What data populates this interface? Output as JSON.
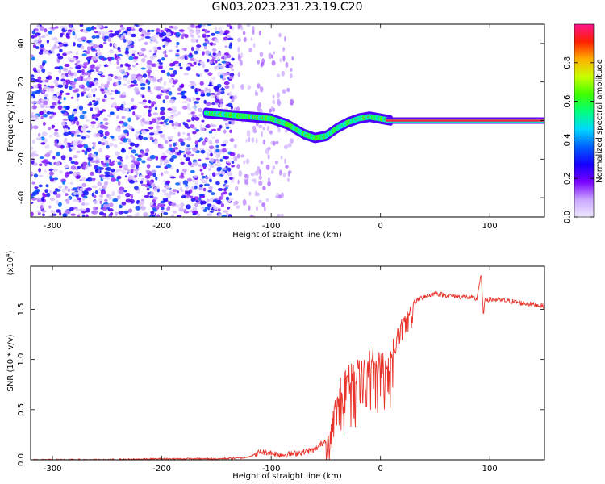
{
  "figure": {
    "title": "GN03.2023.231.23.19.C20"
  },
  "chart_data": [
    {
      "type": "heatmap",
      "xlabel": "Height of straight line (km)",
      "ylabel": "Frequency (Hz)",
      "xlim": [
        -320,
        150
      ],
      "ylim": [
        -50,
        50
      ],
      "xticks": [
        -300,
        -200,
        -100,
        0,
        100
      ],
      "yticks": [
        -40,
        -20,
        0,
        20,
        40
      ],
      "colorbar": {
        "label": "Normalized spectral amplitude",
        "range": [
          0.0,
          1.0
        ],
        "ticks": [
          0.0,
          0.2,
          0.4,
          0.6,
          0.8
        ],
        "colormap": [
          "#f0e8ff",
          "#c9a6ff",
          "#7a00ff",
          "#1400ff",
          "#0060ff",
          "#00d8ff",
          "#00ff80",
          "#40ff00",
          "#c8ff00",
          "#ffb000",
          "#ff2000",
          "#ff1490"
        ]
      },
      "noise_region": {
        "x": [
          -320,
          -135
        ],
        "y": [
          -50,
          50
        ],
        "level": 0.25
      },
      "scatter_region": {
        "x": [
          -135,
          -80
        ],
        "y": [
          -50,
          50
        ],
        "level": 0.1
      },
      "signal_track": [
        {
          "x": -160,
          "y": 4
        },
        {
          "x": -140,
          "y": 3
        },
        {
          "x": -120,
          "y": 2
        },
        {
          "x": -100,
          "y": 1
        },
        {
          "x": -85,
          "y": -2
        },
        {
          "x": -70,
          "y": -7
        },
        {
          "x": -60,
          "y": -9
        },
        {
          "x": -50,
          "y": -8
        },
        {
          "x": -40,
          "y": -4
        },
        {
          "x": -30,
          "y": -1
        },
        {
          "x": -20,
          "y": 1
        },
        {
          "x": -10,
          "y": 2
        },
        {
          "x": 0,
          "y": 1
        },
        {
          "x": 10,
          "y": 0
        },
        {
          "x": 150,
          "y": 0
        }
      ],
      "steady_line": {
        "x": [
          5,
          150
        ],
        "y": 0,
        "value": 0.95
      }
    },
    {
      "type": "line",
      "xlabel": "Height of straight line (km)",
      "ylabel": "SNR (10 * v/v)",
      "y_multiplier": "(x10^4)",
      "xlim": [
        -320,
        150
      ],
      "ylim": [
        0,
        1.93
      ],
      "xticks": [
        -300,
        -200,
        -100,
        0,
        100
      ],
      "yticks": [
        0.0,
        0.5,
        1.0,
        1.5
      ],
      "series": [
        {
          "color": "#e8332b",
          "x": [
            -320,
            -300,
            -250,
            -200,
            -150,
            -125,
            -115,
            -110,
            -100,
            -90,
            -80,
            -70,
            -60,
            -50,
            -45,
            -40,
            -35,
            -30,
            -25,
            -20,
            -15,
            -10,
            -5,
            0,
            5,
            10,
            15,
            20,
            25,
            30,
            35,
            40,
            45,
            50,
            60,
            70,
            80,
            88,
            92,
            94,
            96,
            100,
            110,
            120,
            130,
            140,
            150
          ],
          "y": [
            0.0,
            0.0,
            0.0,
            0.01,
            0.01,
            0.02,
            0.05,
            0.08,
            0.07,
            0.05,
            0.06,
            0.08,
            0.1,
            0.2,
            0.45,
            0.7,
            0.9,
            0.98,
            0.95,
            1.05,
            1.05,
            1.1,
            1.15,
            1.1,
            1.15,
            1.2,
            1.3,
            1.42,
            1.5,
            1.56,
            1.6,
            1.63,
            1.64,
            1.66,
            1.64,
            1.63,
            1.62,
            1.6,
            1.85,
            1.45,
            1.6,
            1.6,
            1.59,
            1.58,
            1.56,
            1.55,
            1.53
          ]
        }
      ]
    }
  ]
}
